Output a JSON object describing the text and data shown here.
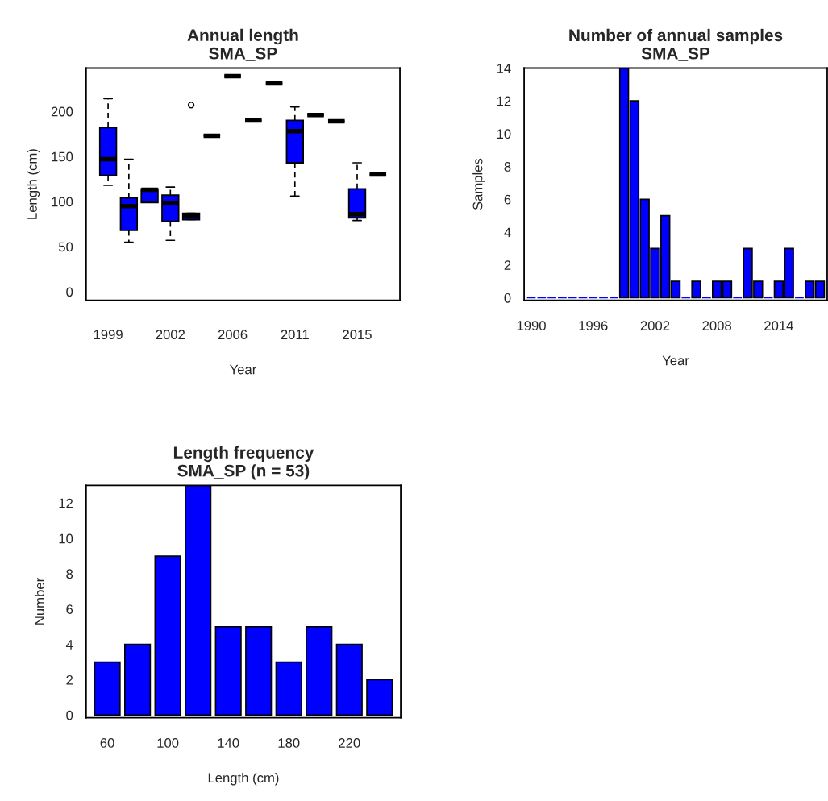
{
  "chart_data": [
    {
      "type": "box",
      "title": "Annual length\nSMA_SP",
      "xlabel": "Year",
      "ylabel": "Length (cm)",
      "color": "#0000ff",
      "categories": [
        "1999",
        null,
        null,
        "2002",
        null,
        null,
        "2006",
        null,
        null,
        "2011",
        null,
        null,
        "2015",
        null
      ],
      "boxes": [
        {
          "low": 118,
          "q1": 129,
          "median": 147,
          "q3": 182,
          "high": 214
        },
        {
          "low": 55,
          "q1": 68,
          "median": 95,
          "q3": 104,
          "high": 147
        },
        {
          "low": 99,
          "q1": 99,
          "median": 113,
          "q3": 114,
          "high": 114
        },
        {
          "low": 57,
          "q1": 78,
          "median": 98,
          "q3": 107,
          "high": 116
        },
        {
          "low": 80,
          "q1": 80,
          "median": 84,
          "q3": 87,
          "high": 87,
          "outliers": [
            207
          ]
        },
        {
          "low": 173,
          "q1": 173,
          "median": 173,
          "q3": 173,
          "high": 173
        },
        {
          "low": 239,
          "q1": 239,
          "median": 239,
          "q3": 239,
          "high": 239
        },
        {
          "low": 190,
          "q1": 190,
          "median": 190,
          "q3": 190,
          "high": 190
        },
        {
          "low": 231,
          "q1": 231,
          "median": 231,
          "q3": 231,
          "high": 231
        },
        {
          "low": 106,
          "q1": 143,
          "median": 178,
          "q3": 190,
          "high": 205
        },
        {
          "low": 196,
          "q1": 196,
          "median": 196,
          "q3": 196,
          "high": 196
        },
        {
          "low": 189,
          "q1": 189,
          "median": 189,
          "q3": 189,
          "high": 189
        },
        {
          "low": 79,
          "q1": 82,
          "median": 86,
          "q3": 114,
          "high": 143
        },
        {
          "low": 130,
          "q1": 130,
          "median": 130,
          "q3": 130,
          "high": 130
        }
      ],
      "ylim": [
        -9.6,
        248
      ],
      "yticks": [
        0,
        50,
        100,
        150,
        200
      ]
    },
    {
      "type": "bar",
      "title": "Number of annual samples\nSMA_SP",
      "xlabel": "Year",
      "ylabel": "Samples",
      "color": "#0000ff",
      "categories": [
        "1990",
        null,
        null,
        null,
        null,
        null,
        "1996",
        null,
        null,
        null,
        null,
        null,
        "2002",
        null,
        null,
        null,
        null,
        null,
        "2008",
        null,
        null,
        null,
        null,
        null,
        "2014",
        null,
        null,
        null,
        null
      ],
      "values": [
        0,
        0,
        0,
        0,
        0,
        0,
        0,
        0,
        0,
        14,
        12,
        6,
        3,
        5,
        1,
        0,
        1,
        0,
        1,
        1,
        0,
        3,
        1,
        0,
        1,
        3,
        0,
        1,
        1
      ],
      "ylim": [
        -0.16,
        14
      ],
      "yticks": [
        0,
        2,
        4,
        6,
        8,
        10,
        12,
        14
      ]
    },
    {
      "type": "bar",
      "title": "Length frequency\nSMA_SP (n = 53)",
      "xlabel": "Length (cm)",
      "ylabel": "Number",
      "color": "#0000ff",
      "categories": [
        "60",
        null,
        "100",
        null,
        "140",
        null,
        "180",
        null,
        "220",
        null
      ],
      "values": [
        3,
        4,
        9,
        13,
        5,
        5,
        3,
        5,
        4,
        2
      ],
      "ylim": [
        -0.15,
        13
      ],
      "yticks": [
        0,
        2,
        4,
        6,
        8,
        10,
        12
      ]
    }
  ]
}
